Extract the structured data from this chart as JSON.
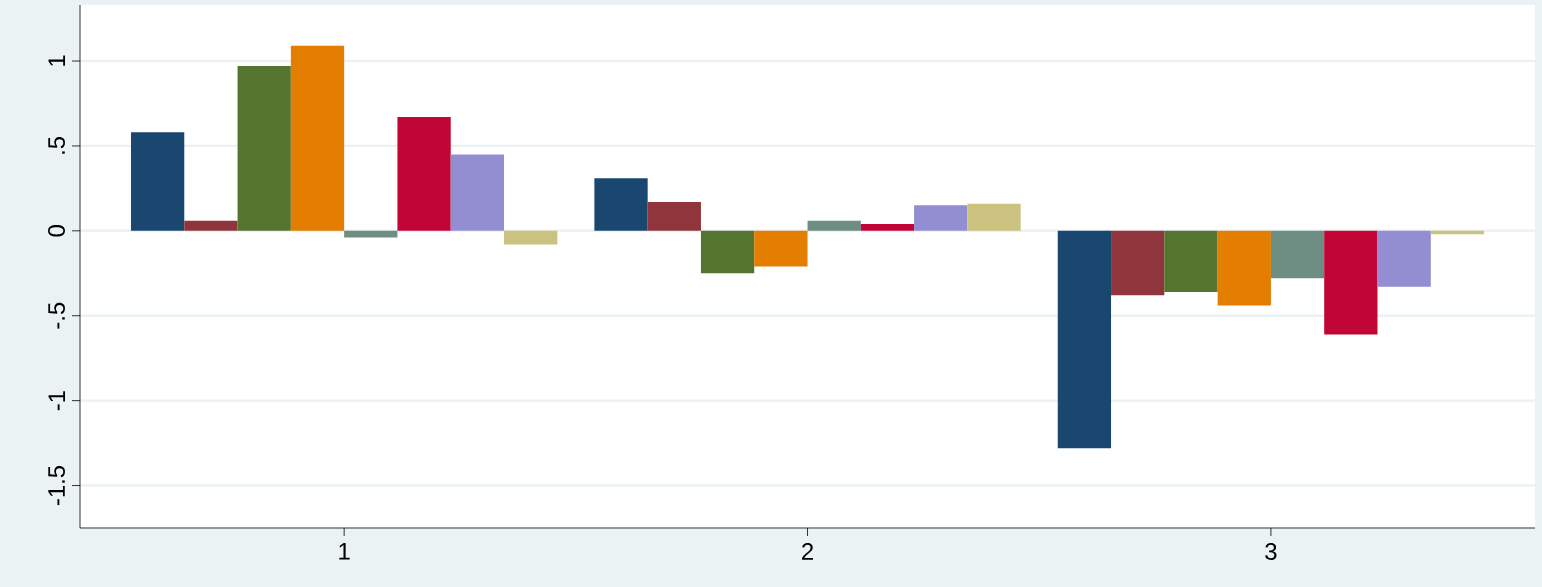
{
  "chart_data": {
    "type": "bar",
    "categories": [
      "1",
      "2",
      "3"
    ],
    "series": [
      {
        "color": "#1a476f",
        "values": [
          0.58,
          0.31,
          -1.28
        ]
      },
      {
        "color": "#90353b",
        "values": [
          0.06,
          0.17,
          -0.38
        ]
      },
      {
        "color": "#55752f",
        "values": [
          0.97,
          -0.25,
          -0.36
        ]
      },
      {
        "color": "#e37e00",
        "values": [
          1.09,
          -0.21,
          -0.44
        ]
      },
      {
        "color": "#6e8e84",
        "values": [
          -0.04,
          0.06,
          -0.28
        ]
      },
      {
        "color": "#c10534",
        "values": [
          0.67,
          0.04,
          -0.61
        ]
      },
      {
        "color": "#938dd2",
        "values": [
          0.45,
          0.15,
          -0.33
        ]
      },
      {
        "color": "#cac27e",
        "values": [
          -0.08,
          0.16,
          -0.02
        ]
      }
    ],
    "ylim": [
      -1.75,
      1.33
    ],
    "yticks": [
      {
        "value": -1.5,
        "label": "-1.5"
      },
      -1,
      {
        "value": -0.5,
        "label": "-.5"
      },
      0,
      {
        "value": 0.5,
        "label": ".5"
      },
      1
    ],
    "grid": "y"
  }
}
